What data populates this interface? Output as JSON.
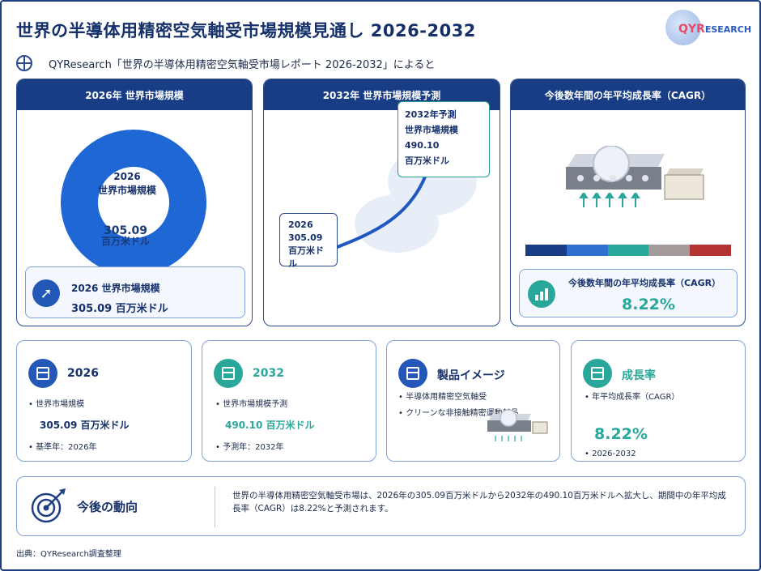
{
  "header": {
    "title": "世界の半導体用精密空気軸受市場規模見通し 2026-2032",
    "logo_main": "QYR",
    "logo_sub": "ESEARCH",
    "subtitle": "QYResearch「世界の半導体用精密空気軸受市場レポート 2026-2032」によると"
  },
  "panel_2026": {
    "heading": "2026年 世界市場規模",
    "donut_label_year": "2026",
    "donut_label_text": "世界市場規模",
    "donut_value": "305.09",
    "donut_unit": "百万米ドル",
    "box_title": "2026 世界市場規模",
    "box_value": "305.09 百万米ドル"
  },
  "panel_2032": {
    "heading": "2032年 世界市場規模予測",
    "callout_end_line1": "2032年予測",
    "callout_end_line2": "世界市場規模",
    "callout_end_line3": "490.10",
    "callout_end_line4": "百万米ドル",
    "callout_start_line1": "2026",
    "callout_start_line2": "305.09",
    "callout_start_line3": "百万米ドル"
  },
  "panel_cagr": {
    "heading": "今後数年間の年平均成長率（CAGR）",
    "box_title": "今後数年間の年平均成長率（CAGR）",
    "box_value": "8.22%",
    "bar_colors": [
      "#183d85",
      "#2f6fcf",
      "#2aa79b",
      "#a39a9a",
      "#b33232"
    ]
  },
  "cards": {
    "c2026": {
      "title": "2026",
      "line1": "• 世界市場規模",
      "big": "305.09 百万米ドル",
      "line2": "• 基準年：2026年",
      "color": "#2358b8"
    },
    "c2032": {
      "title": "2032",
      "line1": "• 世界市場規模予測",
      "big": "490.10 百万米ドル",
      "line2": "• 予測年：2032年",
      "color": "#2aa79b"
    },
    "product": {
      "title": "製品イメージ",
      "line1": "• 半導体用精密空気軸受",
      "line2": "• クリーンな非接触精密運動部品",
      "color": "#2358b8"
    },
    "growth": {
      "title": "成長率",
      "line1": "• 年平均成長率（CAGR）",
      "big": "8.22%",
      "line2": "• 2026-2032",
      "color": "#2aa79b"
    }
  },
  "outlook": {
    "title": "今後の動向",
    "text": "世界の半導体用精密空気軸受市場は、2026年の305.09百万米ドルから2032年の490.10百万米ドルへ拡大し、期間中の年平均成長率（CAGR）は8.22%と予測されます。"
  },
  "source": "出典：QYResearch調査整理"
}
